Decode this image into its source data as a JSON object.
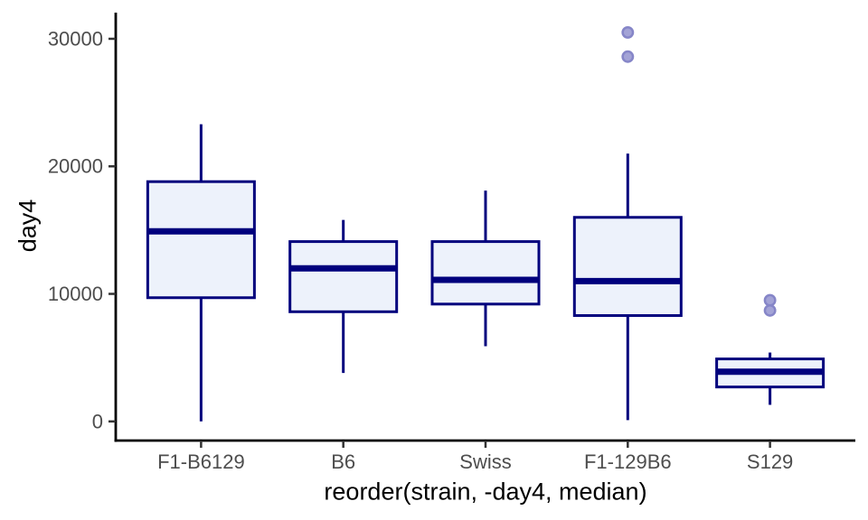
{
  "chart_data": {
    "type": "boxplot",
    "title": "",
    "xlabel": "reorder(strain, -day4, median)",
    "ylabel": "day4",
    "categories": [
      "F1-B6129",
      "B6",
      "Swiss",
      "F1-129B6",
      "S129"
    ],
    "yticks": [
      0,
      10000,
      20000,
      30000
    ],
    "ylim": [
      -1500,
      32050
    ],
    "grid": "off",
    "legend": "none",
    "boxes": [
      {
        "strain": "F1-B6129",
        "min": 0,
        "q1": 9700,
        "median": 14900,
        "q3": 18800,
        "max": 23300,
        "outliers": []
      },
      {
        "strain": "B6",
        "min": 3800,
        "q1": 8600,
        "median": 12000,
        "q3": 14100,
        "max": 15800,
        "outliers": []
      },
      {
        "strain": "Swiss",
        "min": 5900,
        "q1": 9200,
        "median": 11100,
        "q3": 14100,
        "max": 18100,
        "outliers": []
      },
      {
        "strain": "F1-129B6",
        "min": 100,
        "q1": 8300,
        "median": 11000,
        "q3": 16000,
        "max": 21000,
        "outliers": [
          28600,
          30500
        ]
      },
      {
        "strain": "S129",
        "min": 1300,
        "q1": 2700,
        "median": 3900,
        "q3": 4900,
        "max": 5400,
        "outliers": [
          8700,
          9500
        ]
      }
    ],
    "colors": {
      "box_stroke": "#00007d",
      "box_fill": "#edf2fb",
      "median": "#00007d",
      "whisker": "#00007d",
      "outlier_fill": "#a3a3d6",
      "outlier_stroke": "#8686c8",
      "axis_line": "#000000",
      "tick_mark": "#333333",
      "tick_label": "#4d4d4d",
      "axis_title": "#000000"
    }
  }
}
